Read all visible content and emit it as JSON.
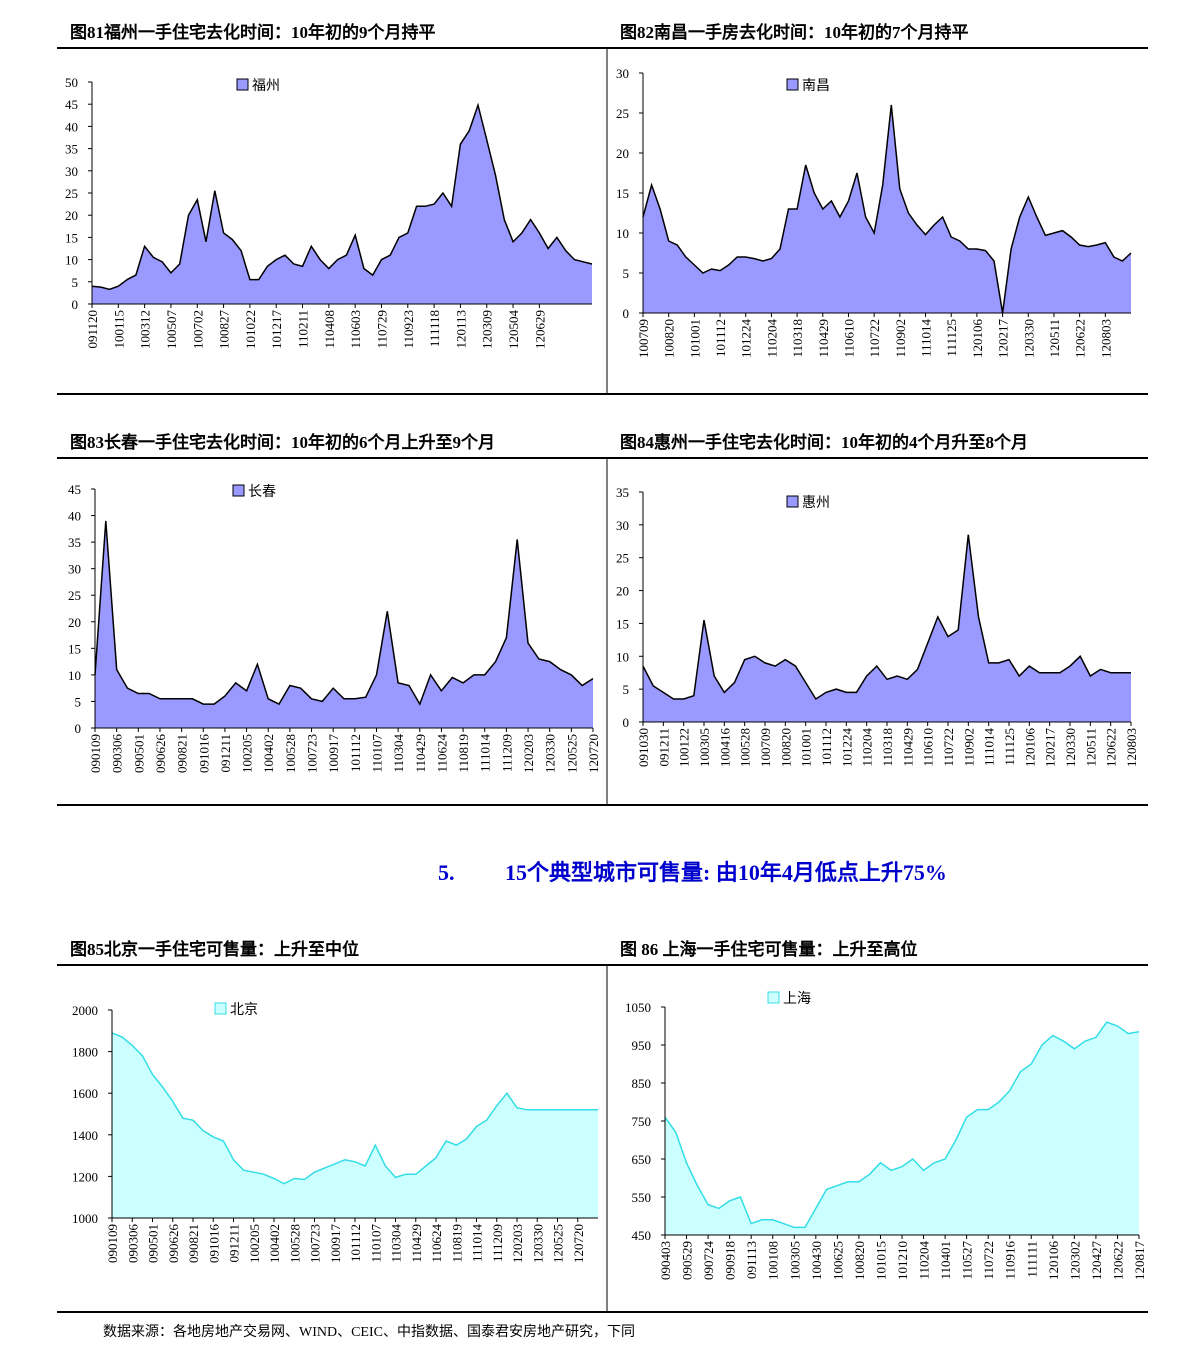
{
  "section_heading": {
    "number": "5.",
    "text": "15个典型城市可售量: 由10年4月低点上升75%"
  },
  "source": "数据来源：各地房地产交易网、WIND、CEIC、中指数据、国泰君安房地产研究，下同",
  "chart_data": [
    {
      "type": "area",
      "title": "图81福州一手住宅去化时间：10年初的9个月持平",
      "categories": [
        "091120",
        null,
        null,
        "100115",
        null,
        null,
        "100312",
        null,
        null,
        "100507",
        null,
        null,
        "100702",
        null,
        null,
        "100827",
        null,
        null,
        "101022",
        null,
        null,
        "101217",
        null,
        null,
        "110211",
        null,
        null,
        "110408",
        null,
        null,
        "110603",
        null,
        null,
        "110729",
        null,
        null,
        "110923",
        null,
        null,
        "111118",
        null,
        null,
        "120113",
        null,
        null,
        "120309",
        null,
        null,
        "120504",
        null,
        null,
        "120629",
        null,
        null,
        null,
        null,
        null,
        null
      ],
      "series": [
        {
          "name": "福州",
          "color": "#9999ff",
          "values": [
            4,
            3.8,
            3.3,
            4,
            5.5,
            6.5,
            13,
            10.5,
            9.5,
            7,
            9,
            20,
            23.5,
            14,
            25.5,
            16,
            14.5,
            12,
            5.5,
            5.5,
            8.5,
            10,
            11,
            9,
            8.5,
            13,
            10,
            8,
            10,
            11,
            15.5,
            8,
            6.5,
            10,
            11,
            15,
            16,
            22,
            22,
            22.5,
            25,
            22,
            36,
            39,
            44.8,
            37,
            29,
            19,
            14,
            16,
            19,
            16,
            12.5,
            15,
            12,
            10,
            9.5,
            9
          ]
        }
      ],
      "ylim": [
        0,
        50
      ],
      "yticks": [
        0,
        5,
        10,
        15,
        20,
        25,
        30,
        35,
        40,
        45,
        50
      ]
    },
    {
      "type": "area",
      "title": "图82南昌一手房去化时间：10年初的7个月持平",
      "categories": [
        "100709",
        null,
        null,
        "100820",
        null,
        null,
        "101001",
        null,
        null,
        "101112",
        null,
        null,
        "101224",
        null,
        null,
        "110204",
        null,
        null,
        "110318",
        null,
        null,
        "110429",
        null,
        null,
        "110610",
        null,
        null,
        "110722",
        null,
        null,
        "110902",
        null,
        null,
        "111014",
        null,
        null,
        "111125",
        null,
        null,
        "120106",
        null,
        null,
        "120217",
        null,
        null,
        "120330",
        null,
        null,
        "120511",
        null,
        null,
        "120622",
        null,
        null,
        "120803",
        null,
        null,
        null
      ],
      "series": [
        {
          "name": "南昌",
          "color": "#9999ff",
          "values": [
            12,
            16,
            13,
            9,
            8.5,
            7,
            6,
            5,
            5.5,
            5.3,
            6,
            7,
            7,
            6.8,
            6.5,
            6.8,
            8,
            13,
            13,
            18.5,
            15,
            13,
            14,
            12,
            14,
            17.5,
            12,
            10,
            16,
            26,
            15.5,
            12.5,
            11,
            9.8,
            11,
            12,
            9.5,
            9,
            8,
            8,
            7.8,
            6.5,
            0,
            8,
            12,
            14.5,
            12,
            9.7,
            10,
            10.3,
            9.5,
            8.5,
            8.3,
            8.5,
            8.8,
            7,
            6.5,
            7.5
          ]
        }
      ],
      "ylim": [
        0,
        30
      ],
      "yticks": [
        0,
        5,
        10,
        15,
        20,
        25,
        30
      ]
    },
    {
      "type": "area",
      "title": "图83长春一手住宅去化时间：10年初的6个月上升至9个月",
      "categories": [
        "090109",
        null,
        "090306",
        null,
        "090501",
        null,
        "090626",
        null,
        "090821",
        null,
        "091016",
        null,
        "091211",
        null,
        "100205",
        null,
        "100402",
        null,
        "100528",
        null,
        "100723",
        null,
        "100917",
        null,
        "101112",
        null,
        "110107",
        null,
        "110304",
        null,
        "110429",
        null,
        "110624",
        null,
        "110819",
        null,
        "111014",
        null,
        "111209",
        null,
        "120203",
        null,
        "120330",
        null,
        "120525",
        null,
        "120720"
      ],
      "series": [
        {
          "name": "长春",
          "color": "#9999ff",
          "values": [
            10,
            39,
            11,
            7.5,
            6.5,
            6.5,
            5.5,
            5.5,
            5.5,
            5.5,
            4.5,
            4.5,
            6,
            8.5,
            7,
            12,
            5.5,
            4.5,
            8,
            7.5,
            5.5,
            5,
            7.5,
            5.5,
            5.5,
            5.8,
            10,
            22,
            8.5,
            8,
            4.5,
            10,
            7,
            9.5,
            8.5,
            10,
            10,
            12.5,
            17,
            35.5,
            16,
            13,
            12.5,
            11,
            10,
            8,
            9.3
          ]
        }
      ],
      "ylim": [
        0,
        45
      ],
      "yticks": [
        0,
        5,
        10,
        15,
        20,
        25,
        30,
        35,
        40,
        45
      ]
    },
    {
      "type": "area",
      "title": "图84惠州一手住宅去化时间：10年初的4个月升至8个月",
      "categories": [
        "091030",
        null,
        "091211",
        null,
        "100122",
        null,
        "100305",
        null,
        "100416",
        null,
        "100528",
        null,
        "100709",
        null,
        "100820",
        null,
        "101001",
        null,
        "101112",
        null,
        "101224",
        null,
        "110204",
        null,
        "110318",
        null,
        "110429",
        null,
        "110610",
        null,
        "110722",
        null,
        "110902",
        null,
        "111014",
        null,
        "111125",
        null,
        "120106",
        null,
        "120217",
        null,
        "120330",
        null,
        "120511",
        null,
        "120622",
        null,
        "120803"
      ],
      "series": [
        {
          "name": "惠州",
          "color": "#9999ff",
          "values": [
            8.5,
            5.5,
            4.5,
            3.5,
            3.5,
            4,
            15.5,
            7,
            4.5,
            6,
            9.5,
            10,
            9,
            8.5,
            9.5,
            8.5,
            6,
            3.5,
            4.5,
            5,
            4.5,
            4.5,
            7,
            8.5,
            6.5,
            7,
            6.5,
            8,
            12,
            16,
            13,
            14,
            28.5,
            16,
            9,
            9,
            9.5,
            7,
            8.5,
            7.5,
            7.5,
            7.5,
            8.5,
            10,
            7,
            8,
            7.5,
            7.5,
            7.5
          ]
        }
      ],
      "ylim": [
        0,
        35
      ],
      "yticks": [
        0,
        5,
        10,
        15,
        20,
        25,
        30,
        35
      ]
    },
    {
      "type": "area",
      "title": "图85北京一手住宅可售量：上升至中位",
      "categories": [
        "090109",
        null,
        "090306",
        null,
        "090501",
        null,
        "090626",
        null,
        "090821",
        null,
        "091016",
        null,
        "091211",
        null,
        "100205",
        null,
        "100402",
        null,
        "100528",
        null,
        "100723",
        null,
        "100917",
        null,
        "101112",
        null,
        "110107",
        null,
        "110304",
        null,
        "110429",
        null,
        "110624",
        null,
        "110819",
        null,
        "111014",
        null,
        "111209",
        null,
        "120203",
        null,
        "120330",
        null,
        "120525",
        null,
        "120720",
        null,
        null
      ],
      "series": [
        {
          "name": "北京",
          "color": "#ccffff",
          "values": [
            1890,
            1870,
            1830,
            1780,
            1690,
            1630,
            1560,
            1480,
            1470,
            1420,
            1390,
            1370,
            1280,
            1230,
            1220,
            1210,
            1190,
            1165,
            1190,
            1185,
            1220,
            1240,
            1260,
            1280,
            1270,
            1250,
            1350,
            1250,
            1195,
            1210,
            1210,
            1250,
            1290,
            1370,
            1350,
            1380,
            1440,
            1470,
            1540,
            1600,
            1530,
            1520,
            1520,
            1520,
            1520,
            1520,
            1520,
            1520,
            1520
          ]
        }
      ],
      "ylim": [
        1000,
        2000
      ],
      "yticks": [
        1000,
        1200,
        1400,
        1600,
        1800,
        2000
      ]
    },
    {
      "type": "area",
      "title": "图 86 上海一手住宅可售量：上升至高位",
      "categories": [
        "090403",
        null,
        "090529",
        null,
        "090724",
        null,
        "090918",
        null,
        "091113",
        null,
        "100108",
        null,
        "100305",
        null,
        "100430",
        null,
        "100625",
        null,
        "100820",
        null,
        "101015",
        null,
        "101210",
        null,
        "110204",
        null,
        "110401",
        null,
        "110527",
        null,
        "110722",
        null,
        "110916",
        null,
        "111111",
        null,
        "120106",
        null,
        "120302",
        null,
        "120427",
        null,
        "120622",
        null,
        "120817"
      ],
      "series": [
        {
          "name": "上海",
          "color": "#ccffff",
          "values": [
            760,
            720,
            640,
            580,
            530,
            520,
            540,
            550,
            480,
            490,
            490,
            480,
            470,
            470,
            520,
            570,
            580,
            590,
            590,
            610,
            640,
            620,
            630,
            650,
            620,
            640,
            650,
            700,
            760,
            780,
            780,
            800,
            830,
            880,
            900,
            950,
            975,
            960,
            940,
            960,
            970,
            1010,
            1000,
            980,
            985
          ]
        }
      ],
      "ylim": [
        450,
        1050
      ],
      "yticks": [
        450,
        550,
        650,
        750,
        850,
        950,
        1050
      ]
    }
  ]
}
